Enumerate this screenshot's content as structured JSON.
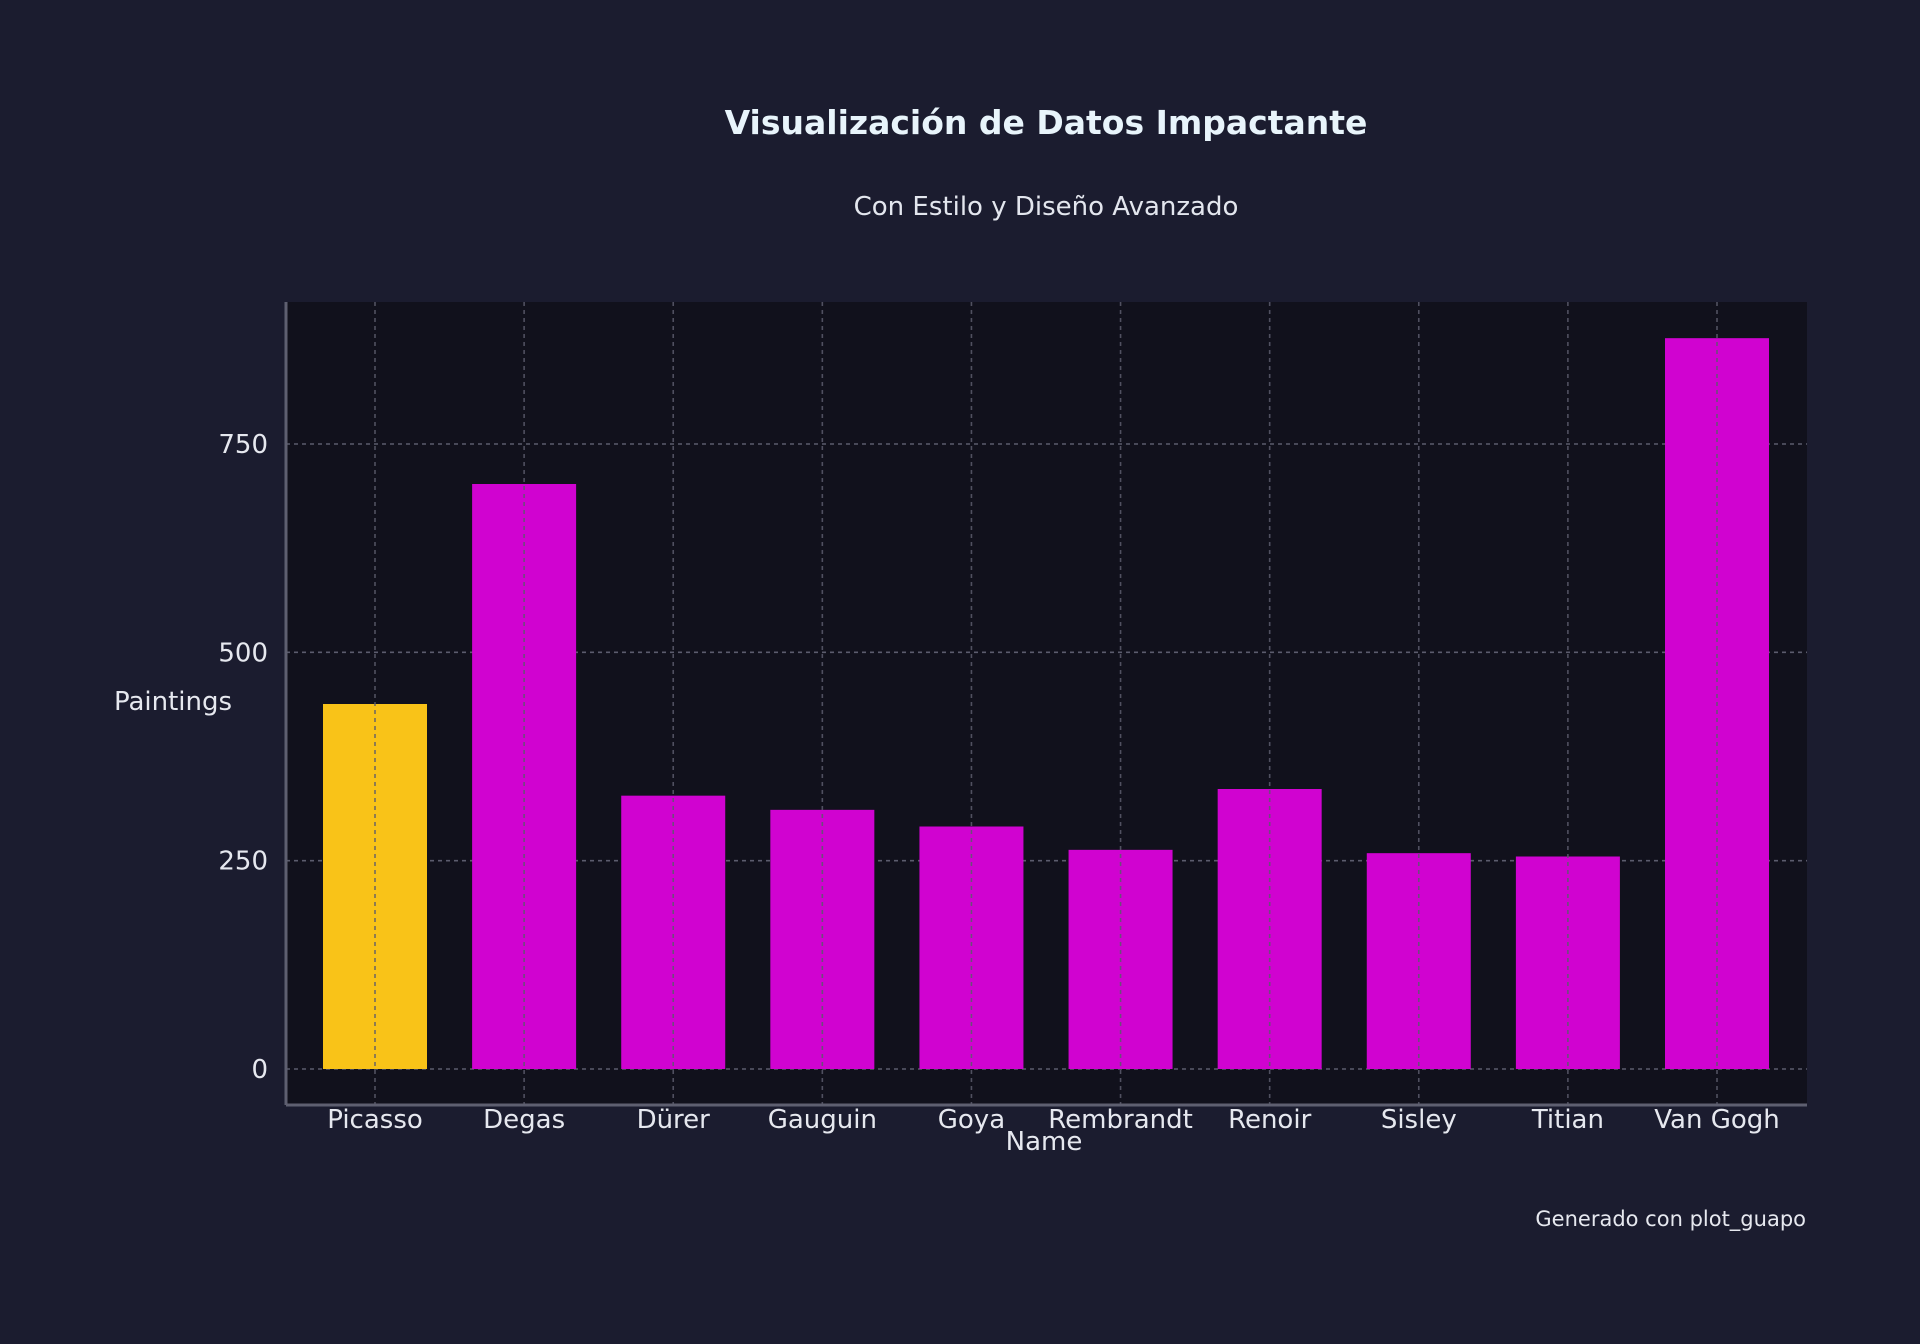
{
  "chart_data": {
    "type": "bar",
    "title": "Visualización de Datos Impactante",
    "subtitle": "Con Estilo y Diseño Avanzado",
    "xlabel": "Name",
    "ylabel": "Paintings",
    "categories": [
      "Picasso",
      "Degas",
      "Dürer",
      "Gauguin",
      "Goya",
      "Rembrandt",
      "Renoir",
      "Sisley",
      "Titian",
      "Van Gogh"
    ],
    "values": [
      438,
      702,
      328,
      311,
      291,
      263,
      336,
      259,
      255,
      877
    ],
    "yticks": [
      0,
      250,
      500,
      750
    ],
    "ytick_labels": [
      "0",
      "250",
      "500",
      "750"
    ],
    "ylim": [
      -44,
      920
    ],
    "grid": true,
    "highlight_index": 0,
    "colors": {
      "background": "#1b1c2f",
      "plot_background": "#11111c",
      "bar": "#d003d0",
      "highlight": "#f9c318",
      "grid": "#5b5c6d",
      "axis": "#5e5f70"
    },
    "caption": "Generado con plot_guapo"
  }
}
